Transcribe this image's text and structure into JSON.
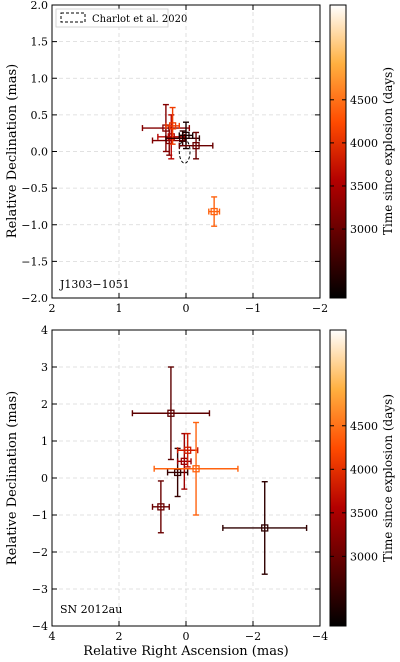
{
  "colorbar_label": "Time since explosion (days)",
  "colorbar_ticks": [
    "4500",
    "4000",
    "3500",
    "3000"
  ],
  "colorbar_range": [
    2200,
    5600
  ],
  "chart_data": [
    {
      "type": "scatter",
      "panel_label": "J1303−1051",
      "xlabel": "",
      "ylabel": "Relative Declination (mas)",
      "xlim": [
        2,
        -2
      ],
      "ylim": [
        -2.0,
        2.0
      ],
      "x_ticks": [
        2,
        1,
        0,
        -1,
        -2
      ],
      "x_tick_labels": [
        "2",
        "1",
        "0",
        "−1",
        "−2"
      ],
      "y_ticks": [
        2.0,
        1.5,
        1.0,
        0.5,
        0.0,
        -0.5,
        -1.0,
        -1.5,
        -2.0
      ],
      "y_tick_labels": [
        "2.0",
        "1.5",
        "1.0",
        "0.5",
        "0.0",
        "−0.5",
        "−1.0",
        "−1.5",
        "−2.0"
      ],
      "grid": true,
      "legend": {
        "position": "top-left",
        "entries": [
          "Charlot et al. 2020"
        ]
      },
      "ellipse": {
        "center": [
          0.02,
          0.0
        ],
        "semi_x": 0.08,
        "semi_y": 0.16
      },
      "points": [
        {
          "t": 3200,
          "x": 0.3,
          "y": 0.32,
          "xerr": 0.35,
          "yerr": 0.32
        },
        {
          "t": 3150,
          "x": 0.25,
          "y": 0.15,
          "xerr": 0.25,
          "yerr": 0.2
        },
        {
          "t": 3600,
          "x": 0.22,
          "y": 0.2,
          "xerr": 0.2,
          "yerr": 0.3
        },
        {
          "t": 4100,
          "x": 0.2,
          "y": 0.35,
          "xerr": 0.1,
          "yerr": 0.25
        },
        {
          "t": 2600,
          "x": 0.05,
          "y": 0.18,
          "xerr": 0.25,
          "yerr": 0.1
        },
        {
          "t": 2400,
          "x": 0.0,
          "y": 0.22,
          "xerr": 0.1,
          "yerr": 0.18
        },
        {
          "t": 3000,
          "x": -0.15,
          "y": 0.08,
          "xerr": 0.25,
          "yerr": 0.18
        },
        {
          "t": 4400,
          "x": -0.42,
          "y": -0.82,
          "xerr": 0.08,
          "yerr": 0.2
        }
      ]
    },
    {
      "type": "scatter",
      "panel_label": "SN 2012au",
      "xlabel": "Relative Right Ascension (mas)",
      "ylabel": "Relative Declination (mas)",
      "xlim": [
        4,
        -4
      ],
      "ylim": [
        -4,
        4
      ],
      "x_ticks": [
        4,
        2,
        0,
        -2,
        -4
      ],
      "x_tick_labels": [
        "4",
        "2",
        "0",
        "−2",
        "−4"
      ],
      "y_ticks": [
        4,
        3,
        2,
        1,
        0,
        -1,
        -2,
        -3,
        -4
      ],
      "y_tick_labels": [
        "4",
        "3",
        "2",
        "1",
        "0",
        "−1",
        "−2",
        "−3",
        "−4"
      ],
      "grid": true,
      "points": [
        {
          "t": 2900,
          "x": 0.45,
          "y": 1.75,
          "xerr": 1.15,
          "yerr": 1.25
        },
        {
          "t": 2600,
          "x": 0.25,
          "y": 0.15,
          "xerr": 0.3,
          "yerr": 0.65
        },
        {
          "t": 3400,
          "x": 0.05,
          "y": 0.45,
          "xerr": 0.2,
          "yerr": 0.75
        },
        {
          "t": 3800,
          "x": -0.05,
          "y": 0.75,
          "xerr": 0.3,
          "yerr": 0.45
        },
        {
          "t": 4400,
          "x": -0.3,
          "y": 0.25,
          "xerr": 1.25,
          "yerr": 1.25
        },
        {
          "t": 3000,
          "x": 0.75,
          "y": -0.78,
          "xerr": 0.25,
          "yerr": 0.7
        },
        {
          "t": 2550,
          "x": -2.35,
          "y": -1.35,
          "xerr": 1.25,
          "yerr": 1.25
        }
      ]
    }
  ]
}
